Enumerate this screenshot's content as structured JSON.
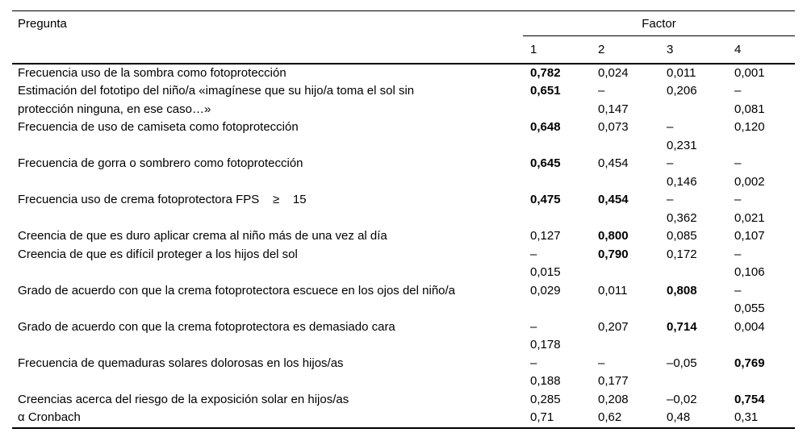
{
  "table": {
    "header": {
      "question_column": "Pregunta",
      "factor_group": "Factor",
      "factor_columns": [
        "1",
        "2",
        "3",
        "4"
      ]
    },
    "rows": [
      {
        "q": "Frecuencia uso de la sombra como fotoprotección",
        "f1": "0,782",
        "f2": "0,024",
        "f3": "0,011",
        "f4": "0,001"
      },
      {
        "q": "Estimación del fototipo del niño/a «imagínese que su hijo/a toma el sol sin\nprotección ninguna, en ese caso…»",
        "f1": "0,651",
        "f2": "–\n0,147",
        "f3": "0,206",
        "f4": "–\n0,081"
      },
      {
        "q": "Frecuencia de uso de camiseta como fotoprotección",
        "f1": "0,648",
        "f2": "0,073",
        "f3": "–\n0,231",
        "f4": "0,120"
      },
      {
        "q": "Frecuencia de gorra o sombrero como fotoprotección",
        "f1": "0,645",
        "f2": "0,454",
        "f3": "–\n0,146",
        "f4": "–\n0,002"
      },
      {
        "q": "Frecuencia uso de crema fotoprotectora FPS    ≥    15",
        "f1": "0,475",
        "f2": "0,454",
        "f3": "–\n0,362",
        "f4": "–\n0,021"
      },
      {
        "q": "Creencia de que es duro aplicar crema al niño más de una vez al día",
        "f1": "0,127",
        "f2": "0,800",
        "f3": "0,085",
        "f4": "0,107"
      },
      {
        "q": "Creencia de que es difícil proteger a los hijos del sol",
        "f1": "–\n0,015",
        "f2": "0,790",
        "f3": "0,172",
        "f4": "–\n0,106"
      },
      {
        "q": "Grado de acuerdo con que la crema fotoprotectora escuece en los ojos del niño/a",
        "f1": "0,029",
        "f2": "0,011",
        "f3": "0,808",
        "f4": "–\n0,055"
      },
      {
        "q": "Grado de acuerdo con que la crema fotoprotectora es demasiado cara",
        "f1": "–\n0,178",
        "f2": "0,207",
        "f3": "0,714",
        "f4": "0,004"
      },
      {
        "q": "Frecuencia de quemaduras solares dolorosas en los hijos/as",
        "f1": "–\n0,188",
        "f2": "–\n0,177",
        "f3": "–0,05",
        "f4": "0,769"
      },
      {
        "q": "Creencias acerca del riesgo de la exposición solar en hijos/as",
        "f1": "0,285",
        "f2": "0,208",
        "f3": "–0,02",
        "f4": "0,754"
      },
      {
        "q": "α Cronbach",
        "f1": "0,71",
        "f2": "0,62",
        "f3": "0,48",
        "f4": "0,31"
      }
    ]
  }
}
